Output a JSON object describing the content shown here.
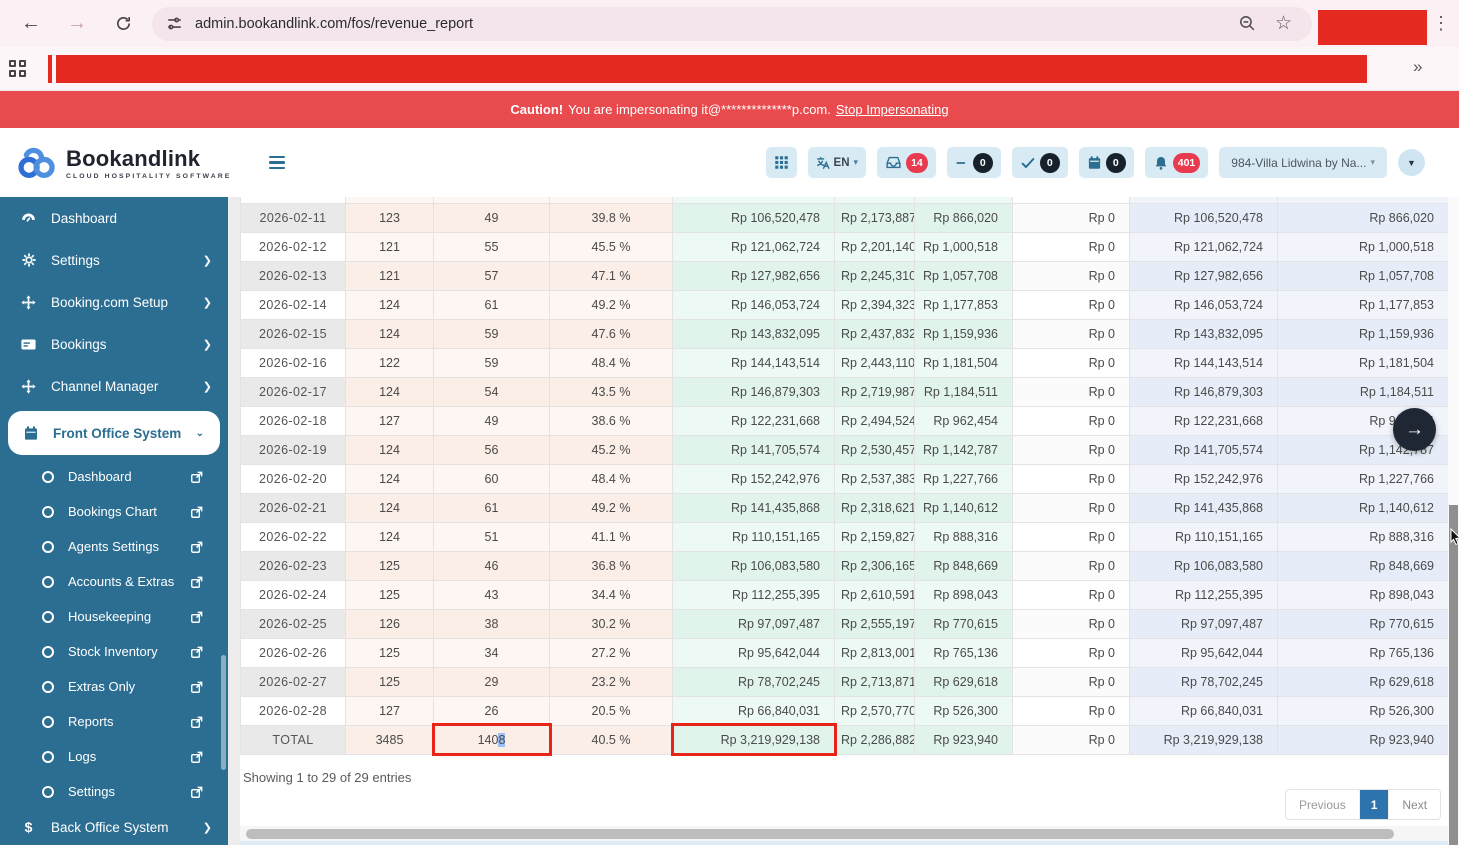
{
  "browser": {
    "url": "admin.bookandlink.com/fos/revenue_report",
    "overflow_chevrons": "»"
  },
  "banner": {
    "bold": "Caution!",
    "text": "You are impersonating it@**************p.com.",
    "link": "Stop Impersonating"
  },
  "header": {
    "brand": "Bookandlink",
    "tagline": "CLOUD HOSPITALITY SOFTWARE",
    "lang": "EN",
    "badges": {
      "messages": "14",
      "minus": "0",
      "check": "0",
      "calendar": "0",
      "notifications": "401"
    },
    "property": "984-Villa Lidwina by Na..."
  },
  "sidebar": {
    "items": [
      {
        "label": "Dashboard"
      },
      {
        "label": "Settings"
      },
      {
        "label": "Booking.com Setup"
      },
      {
        "label": "Bookings"
      },
      {
        "label": "Channel Manager"
      },
      {
        "label": "Front Office System"
      }
    ],
    "subitems": [
      "Dashboard",
      "Bookings Chart",
      "Agents Settings",
      "Accounts & Extras",
      "Housekeeping",
      "Stock Inventory",
      "Extras Only",
      "Reports",
      "Logs",
      "Settings"
    ],
    "bottom_item": "Back Office System"
  },
  "table": {
    "rows": [
      [
        "2026-02-11",
        "123",
        "49",
        "39.8 %",
        "Rp 106,520,478",
        "Rp 2,173,887",
        "Rp 866,020",
        "Rp 0",
        "Rp 106,520,478",
        "Rp 866,020"
      ],
      [
        "2026-02-12",
        "121",
        "55",
        "45.5 %",
        "Rp 121,062,724",
        "Rp 2,201,140",
        "Rp 1,000,518",
        "Rp 0",
        "Rp 121,062,724",
        "Rp 1,000,518"
      ],
      [
        "2026-02-13",
        "121",
        "57",
        "47.1 %",
        "Rp 127,982,656",
        "Rp 2,245,310",
        "Rp 1,057,708",
        "Rp 0",
        "Rp 127,982,656",
        "Rp 1,057,708"
      ],
      [
        "2026-02-14",
        "124",
        "61",
        "49.2 %",
        "Rp 146,053,724",
        "Rp 2,394,323",
        "Rp 1,177,853",
        "Rp 0",
        "Rp 146,053,724",
        "Rp 1,177,853"
      ],
      [
        "2026-02-15",
        "124",
        "59",
        "47.6 %",
        "Rp 143,832,095",
        "Rp 2,437,832",
        "Rp 1,159,936",
        "Rp 0",
        "Rp 143,832,095",
        "Rp 1,159,936"
      ],
      [
        "2026-02-16",
        "122",
        "59",
        "48.4 %",
        "Rp 144,143,514",
        "Rp 2,443,110",
        "Rp 1,181,504",
        "Rp 0",
        "Rp 144,143,514",
        "Rp 1,181,504"
      ],
      [
        "2026-02-17",
        "124",
        "54",
        "43.5 %",
        "Rp 146,879,303",
        "Rp 2,719,987",
        "Rp 1,184,511",
        "Rp 0",
        "Rp 146,879,303",
        "Rp 1,184,511"
      ],
      [
        "2026-02-18",
        "127",
        "49",
        "38.6 %",
        "Rp 122,231,668",
        "Rp 2,494,524",
        "Rp 962,454",
        "Rp 0",
        "Rp 122,231,668",
        "Rp 962,454"
      ],
      [
        "2026-02-19",
        "124",
        "56",
        "45.2 %",
        "Rp 141,705,574",
        "Rp 2,530,457",
        "Rp 1,142,787",
        "Rp 0",
        "Rp 141,705,574",
        "Rp 1,142,787"
      ],
      [
        "2026-02-20",
        "124",
        "60",
        "48.4 %",
        "Rp 152,242,976",
        "Rp 2,537,383",
        "Rp 1,227,766",
        "Rp 0",
        "Rp 152,242,976",
        "Rp 1,227,766"
      ],
      [
        "2026-02-21",
        "124",
        "61",
        "49.2 %",
        "Rp 141,435,868",
        "Rp 2,318,621",
        "Rp 1,140,612",
        "Rp 0",
        "Rp 141,435,868",
        "Rp 1,140,612"
      ],
      [
        "2026-02-22",
        "124",
        "51",
        "41.1 %",
        "Rp 110,151,165",
        "Rp 2,159,827",
        "Rp 888,316",
        "Rp 0",
        "Rp 110,151,165",
        "Rp 888,316"
      ],
      [
        "2026-02-23",
        "125",
        "46",
        "36.8 %",
        "Rp 106,083,580",
        "Rp 2,306,165",
        "Rp 848,669",
        "Rp 0",
        "Rp 106,083,580",
        "Rp 848,669"
      ],
      [
        "2026-02-24",
        "125",
        "43",
        "34.4 %",
        "Rp 112,255,395",
        "Rp 2,610,591",
        "Rp 898,043",
        "Rp 0",
        "Rp 112,255,395",
        "Rp 898,043"
      ],
      [
        "2026-02-25",
        "126",
        "38",
        "30.2 %",
        "Rp 97,097,487",
        "Rp 2,555,197",
        "Rp 770,615",
        "Rp 0",
        "Rp 97,097,487",
        "Rp 770,615"
      ],
      [
        "2026-02-26",
        "125",
        "34",
        "27.2 %",
        "Rp 95,642,044",
        "Rp 2,813,001",
        "Rp 765,136",
        "Rp 0",
        "Rp 95,642,044",
        "Rp 765,136"
      ],
      [
        "2026-02-27",
        "125",
        "29",
        "23.2 %",
        "Rp 78,702,245",
        "Rp 2,713,871",
        "Rp 629,618",
        "Rp 0",
        "Rp 78,702,245",
        "Rp 629,618"
      ],
      [
        "2026-02-28",
        "127",
        "26",
        "20.5 %",
        "Rp 66,840,031",
        "Rp 2,570,770",
        "Rp 526,300",
        "Rp 0",
        "Rp 66,840,031",
        "Rp 526,300"
      ]
    ],
    "total_row": [
      "TOTAL",
      "3485",
      "1408",
      "40.5 %",
      "Rp 3,219,929,138",
      "Rp 2,286,882",
      "Rp 923,940",
      "Rp 0",
      "Rp 3,219,929,138",
      "Rp 923,940"
    ]
  },
  "annotations": {
    "red_box_cols": [
      2,
      4
    ],
    "selection": {
      "col": 2,
      "prefix": "140",
      "selected": "8"
    }
  },
  "footer": {
    "showing": "Showing 1 to 29 of 29 entries",
    "pagination": {
      "previous": "Previous",
      "page": "1",
      "next": "Next"
    }
  },
  "colors": {
    "accent": "#2b6e92",
    "banner": "#e94a4e",
    "badge_red": "#e93b50",
    "badge_dark": "#16212b",
    "annotation_red": "#e8231a",
    "page_active": "#2d74ae"
  }
}
